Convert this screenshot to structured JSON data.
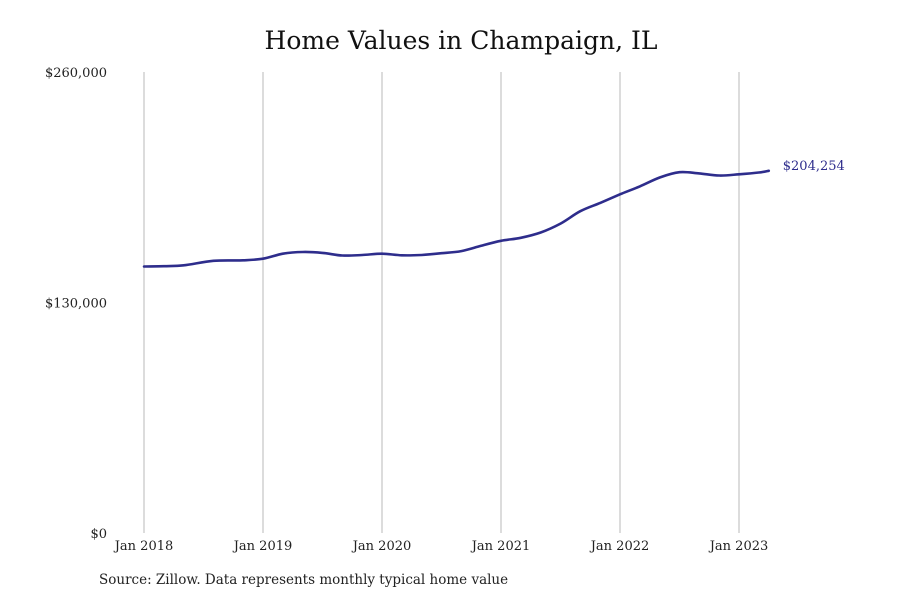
{
  "chart_data": {
    "type": "line",
    "title": "Home Values in Champaign, IL",
    "source": "Source: Zillow. Data represents monthly typical home value",
    "xlabel": "",
    "ylabel": "",
    "ylim": [
      0,
      260000
    ],
    "y_ticks": [
      {
        "value": 0,
        "label": "$0"
      },
      {
        "value": 130000,
        "label": "$130,000"
      },
      {
        "value": 260000,
        "label": "$260,000"
      }
    ],
    "x_ticks": [
      {
        "date": "2018-01",
        "label": "Jan 2018"
      },
      {
        "date": "2019-01",
        "label": "Jan 2019"
      },
      {
        "date": "2020-01",
        "label": "Jan 2020"
      },
      {
        "date": "2021-01",
        "label": "Jan 2021"
      },
      {
        "date": "2022-01",
        "label": "Jan 2022"
      },
      {
        "date": "2023-01",
        "label": "Jan 2023"
      }
    ],
    "grid": "vertical",
    "line_color": "#2e2d8c",
    "end_label": "$204,254",
    "series": [
      {
        "values": [
          {
            "x": "2018-01",
            "y": 150300
          },
          {
            "x": "2018-03",
            "y": 150500
          },
          {
            "x": "2018-05",
            "y": 151000
          },
          {
            "x": "2018-08",
            "y": 153500
          },
          {
            "x": "2018-11",
            "y": 153800
          },
          {
            "x": "2019-01",
            "y": 154700
          },
          {
            "x": "2019-03",
            "y": 157500
          },
          {
            "x": "2019-05",
            "y": 158500
          },
          {
            "x": "2019-07",
            "y": 158000
          },
          {
            "x": "2019-09",
            "y": 156500
          },
          {
            "x": "2019-11",
            "y": 156800
          },
          {
            "x": "2020-01",
            "y": 157500
          },
          {
            "x": "2020-03",
            "y": 156600
          },
          {
            "x": "2020-05",
            "y": 156800
          },
          {
            "x": "2020-07",
            "y": 157800
          },
          {
            "x": "2020-09",
            "y": 159000
          },
          {
            "x": "2020-11",
            "y": 162000
          },
          {
            "x": "2021-01",
            "y": 164800
          },
          {
            "x": "2021-03",
            "y": 166500
          },
          {
            "x": "2021-05",
            "y": 169500
          },
          {
            "x": "2021-07",
            "y": 174500
          },
          {
            "x": "2021-09",
            "y": 181500
          },
          {
            "x": "2021-11",
            "y": 186200
          },
          {
            "x": "2022-01",
            "y": 191000
          },
          {
            "x": "2022-03",
            "y": 195500
          },
          {
            "x": "2022-05",
            "y": 200500
          },
          {
            "x": "2022-07",
            "y": 203500
          },
          {
            "x": "2022-09",
            "y": 202800
          },
          {
            "x": "2022-11",
            "y": 201600
          },
          {
            "x": "2023-01",
            "y": 202300
          },
          {
            "x": "2023-03",
            "y": 203300
          },
          {
            "x": "2023-04",
            "y": 204254
          }
        ]
      }
    ]
  }
}
